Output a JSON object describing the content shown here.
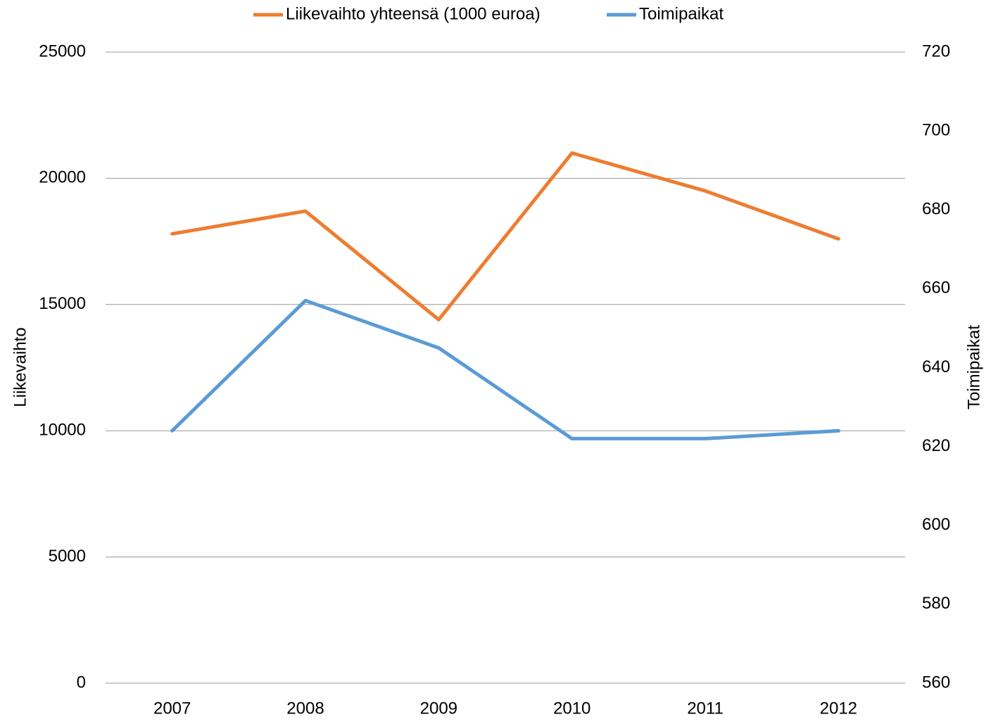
{
  "chart_data": {
    "type": "line",
    "categories": [
      "2007",
      "2008",
      "2009",
      "2010",
      "2011",
      "2012"
    ],
    "series": [
      {
        "name": "Liikevaihto yhteensä (1000 euroa)",
        "color": "#ed7d31",
        "values": [
          17800,
          18700,
          14400,
          21000,
          19500,
          17600
        ]
      },
      {
        "name": "Toimipaikat",
        "color": "#5b9bd5",
        "axis": "y2",
        "values": [
          624,
          657,
          645,
          622,
          622,
          624
        ]
      }
    ],
    "ylabel": "Liikevaihto",
    "y2label": "Toimipaikat",
    "ylim": [
      0,
      25000
    ],
    "yticks": [
      0,
      5000,
      10000,
      15000,
      20000,
      25000
    ],
    "y2lim": [
      560,
      720
    ],
    "y2ticks": [
      560,
      580,
      600,
      620,
      640,
      660,
      680,
      700,
      720
    ],
    "grid": true,
    "legend": "top"
  }
}
